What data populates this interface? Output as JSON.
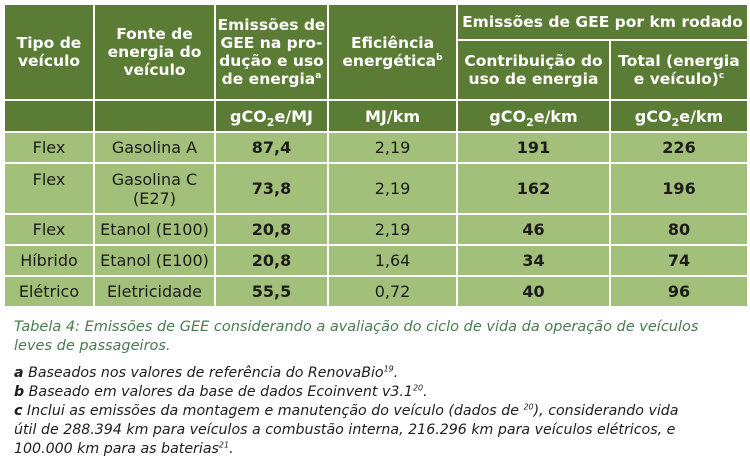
{
  "table": {
    "headers": {
      "tipo": "Tipo de veículo",
      "fonte": "Fonte de energia do veículo",
      "emissoes": "Emissões de GEE na produção e uso de energia",
      "emissoes_line1": "Emissões de",
      "emissoes_line2": "GEE na pro-",
      "emissoes_line3": "dução e uso",
      "emissoes_line4": "de energia",
      "emissoes_sup": "a",
      "eficiencia_line1": "Eficiência",
      "eficiencia_line2": "energética",
      "eficiencia_sup": "b",
      "group": "Emissões de GEE por km rodado",
      "contrib_line1": "Contribuição do",
      "contrib_line2": "uso de energia",
      "total_line1": "Total (energia",
      "total_line2": "e veículo)",
      "total_sup": "c"
    },
    "units": {
      "emissoes_pre": "gCO",
      "emissoes_sub": "2",
      "emissoes_post": "e/MJ",
      "eficiencia": "MJ/km",
      "contrib_pre": "gCO",
      "contrib_sub": "2",
      "contrib_post": "e/km",
      "total_pre": "gCO",
      "total_sub": "2",
      "total_post": "e/km"
    },
    "rows": [
      {
        "tipo": "Flex",
        "fonte": "Gasolina A",
        "emissoes": "87,4",
        "eficiencia": "2,19",
        "contrib": "191",
        "total": "226"
      },
      {
        "tipo": "Flex",
        "fonte_line1": "Gasolina C",
        "fonte_line2": "(E27)",
        "emissoes": "73,8",
        "eficiencia": "2,19",
        "contrib": "162",
        "total": "196"
      },
      {
        "tipo": "Flex",
        "fonte": "Etanol (E100)",
        "emissoes": "20,8",
        "eficiencia": "2,19",
        "contrib": "46",
        "total": "80"
      },
      {
        "tipo": "Híbrido",
        "fonte": "Etanol (E100)",
        "emissoes": "20,8",
        "eficiencia": "1,64",
        "contrib": "34",
        "total": "74"
      },
      {
        "tipo": "Elétrico",
        "fonte": "Eletricidade",
        "emissoes": "55,5",
        "eficiencia": "0,72",
        "contrib": "40",
        "total": "96"
      }
    ]
  },
  "caption_line1": "Tabela 4: Emissões de GEE considerando a avaliação do ciclo de vida da operação de veículos",
  "caption_line2": "leves de passageiros.",
  "notes": {
    "a_label": "a",
    "a_text": " Baseados nos valores de referência do RenovaBio",
    "a_ref": "19",
    "a_end": ".",
    "b_label": "b",
    "b_text": " Baseado em valores da base de dados Ecoinvent v3.1",
    "b_ref": "20",
    "b_end": ".",
    "c_label": "c",
    "c_text1": " Inclui as emissões da montagem e manutenção do veículo (dados de ",
    "c_ref1": "20",
    "c_text2": "), considerando vida",
    "c_line2": "útil de 288.394 km para veículos a combustão interna, 216.296 km para veículos elétricos, e",
    "c_line3": "100.000 km para as baterias",
    "c_ref2": "21",
    "c_end": "."
  }
}
